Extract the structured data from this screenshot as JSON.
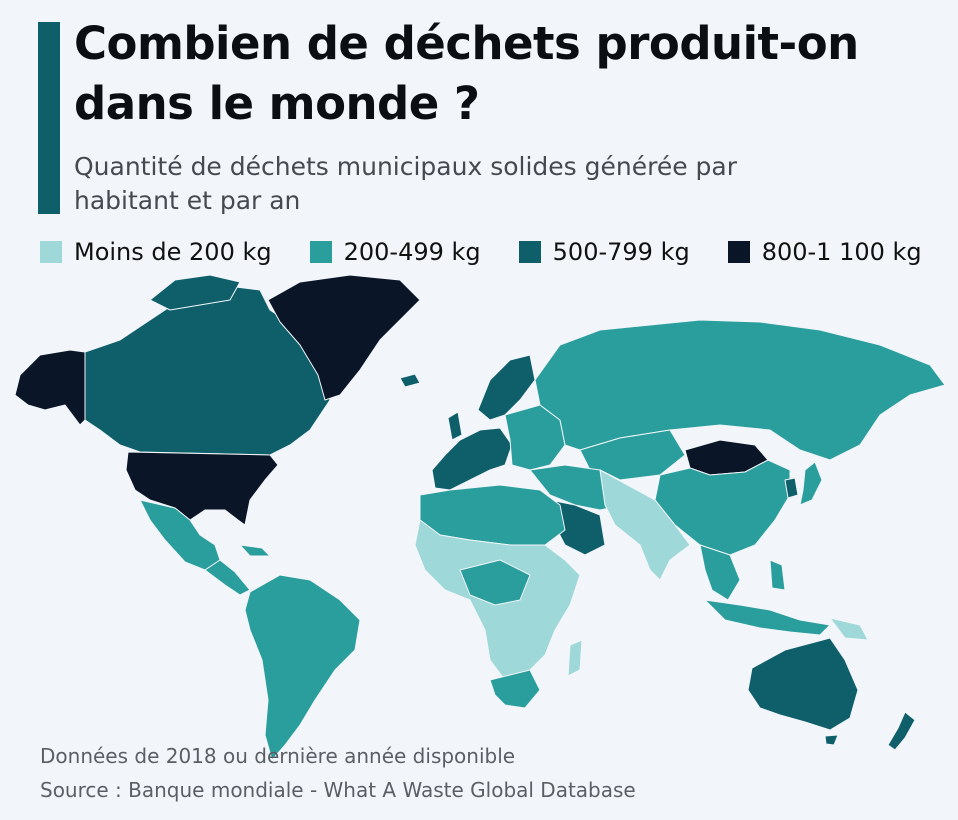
{
  "header": {
    "title": "Combien de déchets produit-on dans le monde ?",
    "subtitle": "Quantité de déchets municipaux solides générée par habitant et par an"
  },
  "legend": {
    "items": [
      {
        "label": "Moins de 200 kg",
        "color": "#9fd8d8"
      },
      {
        "label": "200-499 kg",
        "color": "#2a9e9c"
      },
      {
        "label": "500-799 kg",
        "color": "#0f5f6b"
      },
      {
        "label": "800-1 100 kg",
        "color": "#0a1628"
      }
    ]
  },
  "map": {
    "no_data_color": "#c9cfd4",
    "regions": [
      {
        "name": "Alaska",
        "category": "800-1 100 kg"
      },
      {
        "name": "Canada",
        "category": "500-799 kg"
      },
      {
        "name": "Groenland",
        "category": "800-1 100 kg"
      },
      {
        "name": "États-Unis",
        "category": "800-1 100 kg"
      },
      {
        "name": "Mexique",
        "category": "200-499 kg"
      },
      {
        "name": "Amérique centrale",
        "category": "200-499 kg"
      },
      {
        "name": "Amérique du Sud",
        "category": "200-499 kg"
      },
      {
        "name": "Europe occidentale",
        "category": "500-799 kg"
      },
      {
        "name": "Europe de l'Est",
        "category": "200-499 kg"
      },
      {
        "name": "Russie",
        "category": "200-499 kg"
      },
      {
        "name": "Mongolie",
        "category": "800-1 100 kg"
      },
      {
        "name": "Chine",
        "category": "200-499 kg"
      },
      {
        "name": "Inde",
        "category": "Moins de 200 kg"
      },
      {
        "name": "Moyen-Orient",
        "category": "200-499 kg"
      },
      {
        "name": "Arabie saoudite",
        "category": "500-799 kg"
      },
      {
        "name": "Afrique du Nord",
        "category": "200-499 kg"
      },
      {
        "name": "Afrique subsaharienne",
        "category": "Moins de 200 kg"
      },
      {
        "name": "Afrique australe",
        "category": "200-499 kg"
      },
      {
        "name": "Asie du Sud-Est",
        "category": "200-499 kg"
      },
      {
        "name": "Australie",
        "category": "500-799 kg"
      },
      {
        "name": "Nouvelle-Zélande",
        "category": "500-799 kg"
      },
      {
        "name": "Japon",
        "category": "200-499 kg"
      }
    ]
  },
  "footer": {
    "note": "Données de 2018 ou dernière année disponible",
    "source": "Source : Banque mondiale - What A Waste Global Database"
  }
}
